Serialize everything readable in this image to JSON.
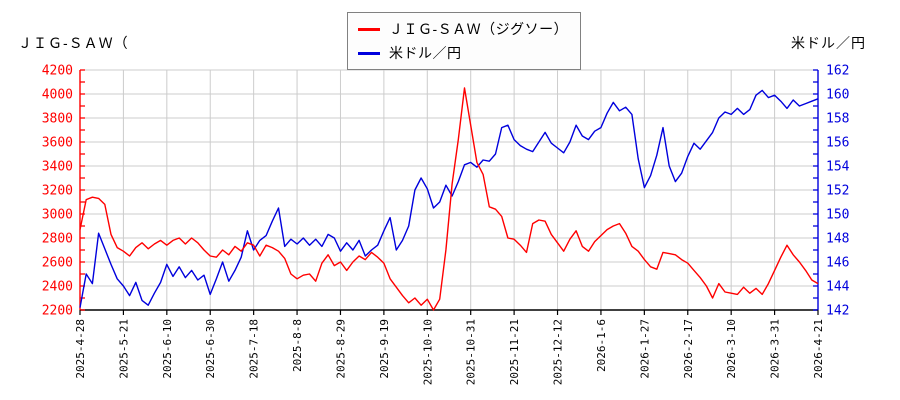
{
  "titles": {
    "left": "ＪＩＧ-ＳＡＷ（",
    "right": "米ドル／円"
  },
  "legend": {
    "position": "top-center",
    "items": [
      {
        "label": "ＪＩＧ-ＳＡＷ（ジグソー）",
        "color": "#ff0000"
      },
      {
        "label": "米ドル／円",
        "color": "#0000dd"
      }
    ]
  },
  "chart_data": {
    "type": "line",
    "title": "ＪＩＧ-ＳＡＷ（ジグソー）と米ドル／円",
    "xlabel": "",
    "ylabel_left": "",
    "ylabel_right": "",
    "grid": true,
    "grid_color": "#cccccc",
    "background": "#ffffff",
    "points_per_tick": 7,
    "x_tick_labels": [
      "2025-4-28",
      "2025-5-21",
      "2025-6-10",
      "2025-6-30",
      "2025-7-18",
      "2025-8-8",
      "2025-8-29",
      "2025-9-19",
      "2025-10-10",
      "2025-10-31",
      "2025-11-21",
      "2025-12-12",
      "2026-1-6",
      "2026-1-27",
      "2026-2-17",
      "2026-3-10",
      "2026-3-31",
      "2026-4-21"
    ],
    "left_axis": {
      "min": 2200,
      "max": 4200,
      "tick_step": 200,
      "minor_tick_step": 100,
      "color": "#ff0000",
      "tick_values": [
        4200,
        4000,
        3800,
        3600,
        3400,
        3200,
        3000,
        2800,
        2600,
        2400,
        2200
      ]
    },
    "right_axis": {
      "min": 142,
      "max": 162,
      "tick_step": 2,
      "minor_tick_step": 1,
      "color": "#0000dd",
      "tick_values": [
        162,
        160,
        158,
        156,
        154,
        152,
        150,
        148,
        146,
        144,
        142
      ]
    },
    "series": [
      {
        "name": "ＪＩＧ-ＳＡＷ（ジグソー）",
        "axis": "left",
        "color": "#ff0000",
        "values": [
          2870,
          3120,
          3140,
          3130,
          3080,
          2830,
          2720,
          2690,
          2650,
          2720,
          2760,
          2710,
          2750,
          2780,
          2740,
          2780,
          2800,
          2750,
          2800,
          2760,
          2700,
          2650,
          2640,
          2700,
          2660,
          2730,
          2690,
          2760,
          2740,
          2650,
          2740,
          2720,
          2690,
          2630,
          2500,
          2460,
          2490,
          2500,
          2440,
          2590,
          2660,
          2570,
          2600,
          2530,
          2600,
          2650,
          2620,
          2680,
          2640,
          2590,
          2460,
          2390,
          2320,
          2260,
          2300,
          2240,
          2290,
          2200,
          2290,
          2700,
          3250,
          3620,
          4050,
          3740,
          3430,
          3330,
          3060,
          3040,
          2980,
          2800,
          2790,
          2740,
          2680,
          2920,
          2950,
          2940,
          2830,
          2760,
          2690,
          2790,
          2860,
          2730,
          2690,
          2770,
          2820,
          2870,
          2900,
          2920,
          2840,
          2730,
          2690,
          2620,
          2560,
          2540,
          2680,
          2670,
          2660,
          2620,
          2590,
          2530,
          2470,
          2400,
          2300,
          2420,
          2350,
          2340,
          2330,
          2390,
          2340,
          2380,
          2330,
          2420,
          2530,
          2640,
          2740,
          2660,
          2600,
          2530,
          2450,
          2420
        ]
      },
      {
        "name": "米ドル／円",
        "axis": "right",
        "color": "#0000dd",
        "values": [
          142.2,
          145.0,
          144.2,
          148.4,
          147.1,
          145.8,
          144.6,
          144.0,
          143.2,
          144.3,
          142.8,
          142.4,
          143.4,
          144.3,
          145.8,
          144.8,
          145.6,
          144.7,
          145.3,
          144.5,
          144.9,
          143.3,
          144.6,
          146.0,
          144.4,
          145.3,
          146.4,
          148.6,
          147.0,
          147.8,
          148.2,
          149.4,
          150.5,
          147.3,
          147.9,
          147.5,
          148.0,
          147.4,
          147.9,
          147.3,
          148.3,
          148.0,
          146.9,
          147.6,
          147.0,
          147.8,
          146.5,
          147.0,
          147.4,
          148.6,
          149.7,
          147.0,
          147.8,
          149.0,
          152.0,
          153.0,
          152.1,
          150.5,
          151.0,
          152.4,
          151.5,
          152.7,
          154.1,
          154.3,
          153.9,
          154.5,
          154.4,
          155.0,
          157.2,
          157.4,
          156.2,
          155.7,
          155.4,
          155.2,
          156.0,
          156.8,
          155.9,
          155.5,
          155.1,
          156.0,
          157.4,
          156.5,
          156.2,
          156.9,
          157.2,
          158.4,
          159.3,
          158.6,
          158.9,
          158.3,
          154.6,
          152.2,
          153.2,
          154.9,
          157.2,
          154.0,
          152.7,
          153.4,
          154.8,
          155.9,
          155.4,
          156.1,
          156.8,
          158.0,
          158.5,
          158.3,
          158.8,
          158.3,
          158.7,
          159.9,
          160.3,
          159.7,
          159.9,
          159.4,
          158.8,
          159.5,
          159.0,
          159.2,
          159.4,
          159.6
        ]
      }
    ]
  }
}
